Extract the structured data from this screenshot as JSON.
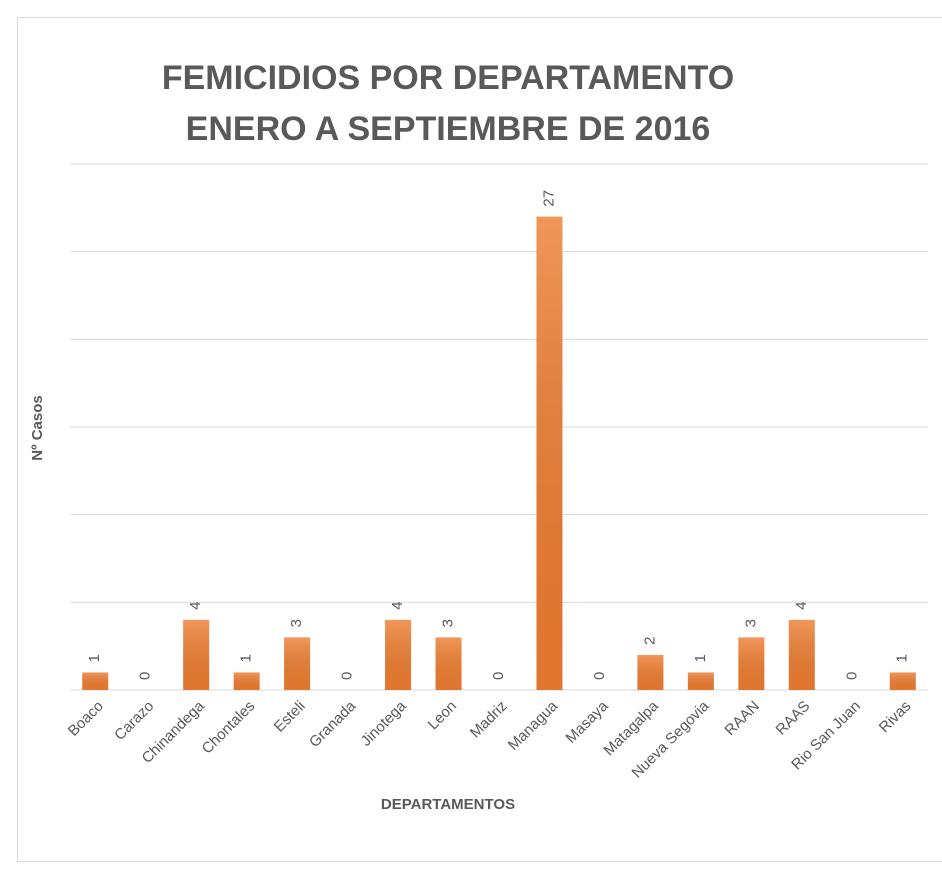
{
  "chart_data": {
    "type": "bar",
    "title": [
      "FEMICIDIOS POR DEPARTAMENTO",
      "ENERO A SEPTIEMBRE DE 2016"
    ],
    "x_label": "DEPARTAMENTOS",
    "y_label": "Nº Casos",
    "categories": [
      "Boaco",
      "Carazo",
      "Chinandega",
      "Chontales",
      "Esteli",
      "Granada",
      "Jinotega",
      "Leon",
      "Madriz",
      "Managua",
      "Masaya",
      "Matagalpa",
      "Nueva Segovia",
      "RAAN",
      "RAAS",
      "Rio San Juan",
      "Rivas"
    ],
    "values": [
      1,
      0,
      4,
      1,
      3,
      0,
      4,
      3,
      0,
      27,
      0,
      2,
      1,
      3,
      4,
      0,
      1
    ],
    "color": "#ed7d31",
    "ylim": [
      0,
      30
    ],
    "yticks": [
      0,
      5,
      10,
      15,
      20,
      25,
      30
    ],
    "grid": true
  }
}
